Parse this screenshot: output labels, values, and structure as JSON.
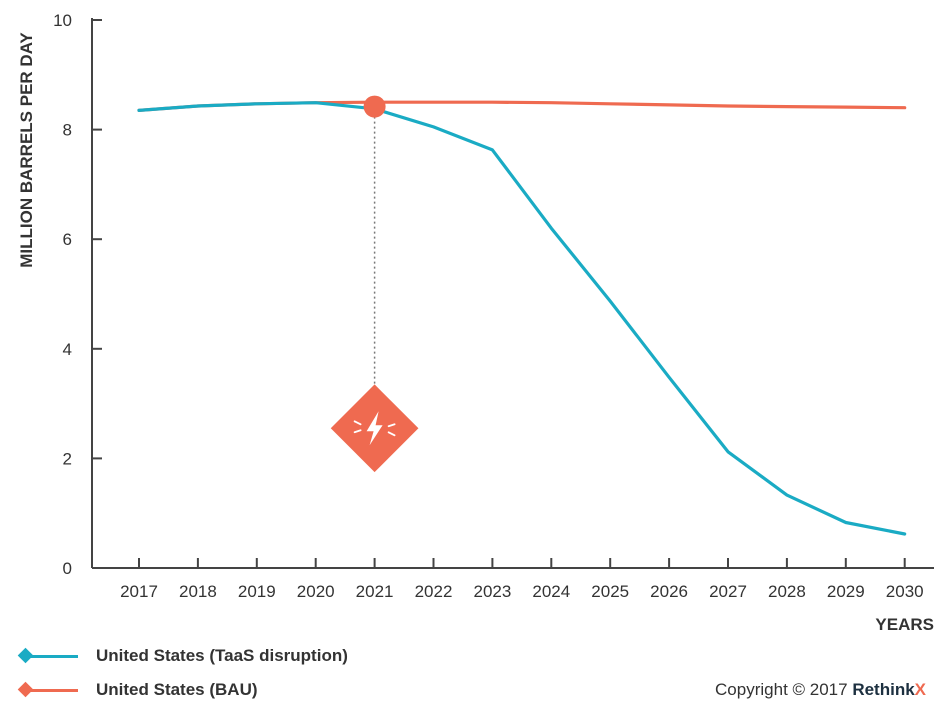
{
  "chart_data": {
    "type": "line",
    "title": "",
    "xlabel": "YEARS",
    "ylabel": "MILLION BARRELS PER DAY",
    "x": [
      2017,
      2018,
      2019,
      2020,
      2021,
      2022,
      2023,
      2024,
      2025,
      2026,
      2027,
      2028,
      2029,
      2030
    ],
    "xticks": [
      "2017",
      "2018",
      "2019",
      "2020",
      "2021",
      "2022",
      "2023",
      "2024",
      "2025",
      "2026",
      "2027",
      "2028",
      "2029",
      "2030"
    ],
    "ylim": [
      0,
      10
    ],
    "yticks": [
      "0",
      "2",
      "4",
      "6",
      "8",
      "10"
    ],
    "grid": false,
    "series": [
      {
        "name": "United States (TaaS disruption)",
        "color": "#1aabc4",
        "values": [
          8.35,
          8.43,
          8.47,
          8.49,
          8.38,
          8.05,
          7.63,
          6.2,
          4.87,
          3.48,
          2.12,
          1.33,
          0.83,
          0.62
        ]
      },
      {
        "name": "United States (BAU)",
        "color": "#ef6a50",
        "values": [
          8.35,
          8.43,
          8.47,
          8.49,
          8.5,
          8.5,
          8.5,
          8.49,
          8.47,
          8.45,
          8.43,
          8.42,
          8.41,
          8.4
        ]
      }
    ],
    "annotations": [
      {
        "type": "disruption-point",
        "x": 2021,
        "y": 8.42,
        "icon": "lightning-bolt-icon",
        "marker_y": 2.55,
        "color": "#ef6a50"
      }
    ],
    "legend_position": "bottom-left"
  },
  "copyright": {
    "text": "Copyright © 2017 ",
    "brand": "Rethink",
    "brand_x": "X"
  }
}
